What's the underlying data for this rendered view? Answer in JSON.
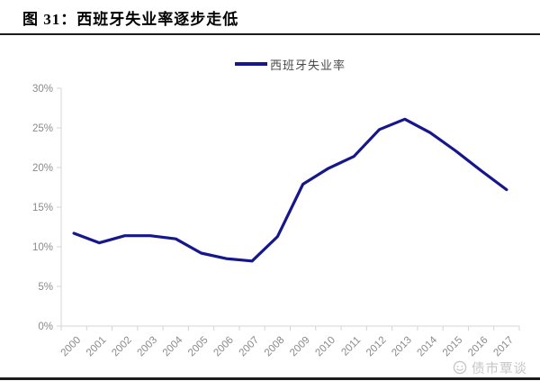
{
  "header": {
    "title": "图 31：西班牙失业率逐步走低"
  },
  "legend": {
    "label": "西班牙失业率"
  },
  "watermark": {
    "label": "债市覃谈"
  },
  "chart_data": {
    "type": "line",
    "title": "图 31：西班牙失业率逐步走低",
    "categories": [
      "2000",
      "2001",
      "2002",
      "2003",
      "2004",
      "2005",
      "2006",
      "2007",
      "2008",
      "2009",
      "2010",
      "2011",
      "2012",
      "2013",
      "2014",
      "2015",
      "2016",
      "2017"
    ],
    "series": [
      {
        "name": "西班牙失业率",
        "values": [
          11.7,
          10.5,
          11.4,
          11.4,
          11.0,
          9.2,
          8.5,
          8.2,
          11.3,
          17.9,
          19.9,
          21.4,
          24.8,
          26.1,
          24.4,
          22.1,
          19.6,
          17.2
        ],
        "color": "#16168d"
      }
    ],
    "xlabel": "",
    "ylabel": "",
    "ylim": [
      0,
      30
    ],
    "y_ticks": [
      "0%",
      "5%",
      "10%",
      "15%",
      "20%",
      "25%",
      "30%"
    ],
    "grid": false,
    "legend_position": "top-center",
    "axis_color": "#d4d4d4",
    "tick_label_color": "#8a8a8a"
  }
}
